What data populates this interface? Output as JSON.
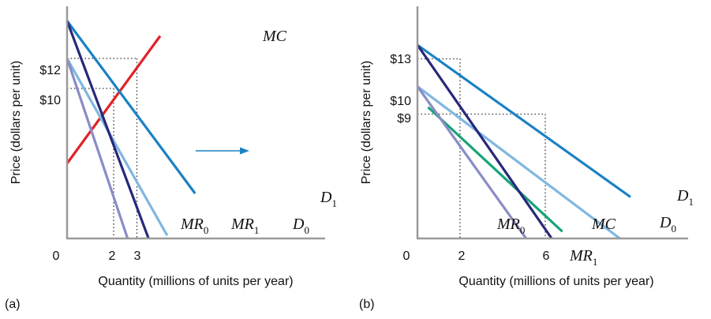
{
  "chart_data": [
    {
      "panel_label": "(a)",
      "type": "line",
      "xlabel": "Quantity (millions of units per year)",
      "ylabel": "Price (dollars per unit)",
      "x_ticks": [
        "0",
        "2",
        "3"
      ],
      "y_ticks": [
        "$12",
        "$10"
      ],
      "colors": {
        "MC": "#e0232a",
        "D1": "#1a82c4",
        "D0": "#7fb7e1",
        "MR1": "#27287a",
        "MR0": "#8a8cc6",
        "guides": "#333333",
        "arrow": "#1a82c4"
      },
      "curves": [
        {
          "key": "MC",
          "label": "MC",
          "points": [
            [
              0,
              5
            ],
            [
              4,
              13.5
            ]
          ]
        },
        {
          "key": "D1",
          "label": "D",
          "sub": "1",
          "points": [
            [
              0,
              14.5
            ],
            [
              5.5,
              3
            ]
          ]
        },
        {
          "key": "D0",
          "label": "D",
          "sub": "0",
          "points": [
            [
              0,
              12
            ],
            [
              4.3,
              0.2
            ]
          ]
        },
        {
          "key": "MR1",
          "label": "MR",
          "sub": "1",
          "points": [
            [
              0,
              14.5
            ],
            [
              3.5,
              0
            ]
          ]
        },
        {
          "key": "MR0",
          "label": "MR",
          "sub": "0",
          "points": [
            [
              0,
              12
            ],
            [
              2.6,
              0
            ]
          ]
        }
      ],
      "guides": [
        {
          "from": [
            0,
            12
          ],
          "to": [
            3,
            12
          ]
        },
        {
          "from": [
            3,
            12
          ],
          "to": [
            3,
            0
          ]
        },
        {
          "from": [
            0,
            10
          ],
          "to": [
            2,
            10
          ]
        },
        {
          "from": [
            2,
            10
          ],
          "to": [
            2,
            0
          ]
        }
      ],
      "annotations": [
        "shift arrow from D0 toward D1"
      ]
    },
    {
      "panel_label": "(b)",
      "type": "line",
      "xlabel": "Quantity (millions of units per year)",
      "ylabel": "Price (dollars per unit)",
      "x_ticks": [
        "0",
        "2",
        "6"
      ],
      "y_ticks": [
        "$13",
        "$10",
        "$9"
      ],
      "colors": {
        "MC": "#17a37a",
        "D1": "#1a82c4",
        "D0": "#7fb7e1",
        "MR1": "#27287a",
        "MR0": "#8a8cc6",
        "guides": "#333333"
      },
      "curves": [
        {
          "key": "MC",
          "label": "MC",
          "points": [
            [
              0.5,
              9.5
            ],
            [
              6.8,
              0.5
            ]
          ]
        },
        {
          "key": "D1",
          "label": "D",
          "sub": "1",
          "points": [
            [
              0,
              14
            ],
            [
              10,
              3
            ]
          ]
        },
        {
          "key": "D0",
          "label": "D",
          "sub": "0",
          "points": [
            [
              0,
              11
            ],
            [
              9.5,
              0
            ]
          ]
        },
        {
          "key": "MR1",
          "label": "MR",
          "sub": "1",
          "points": [
            [
              0,
              14
            ],
            [
              6.3,
              0
            ]
          ]
        },
        {
          "key": "MR0",
          "label": "MR",
          "sub": "0",
          "points": [
            [
              0,
              11
            ],
            [
              5.1,
              0
            ]
          ]
        }
      ],
      "guides": [
        {
          "from": [
            0,
            13
          ],
          "to": [
            2,
            13
          ]
        },
        {
          "from": [
            2,
            13
          ],
          "to": [
            2,
            0
          ]
        },
        {
          "from": [
            0,
            9
          ],
          "to": [
            6,
            9
          ]
        },
        {
          "from": [
            6,
            9
          ],
          "to": [
            6,
            0
          ]
        }
      ]
    }
  ]
}
